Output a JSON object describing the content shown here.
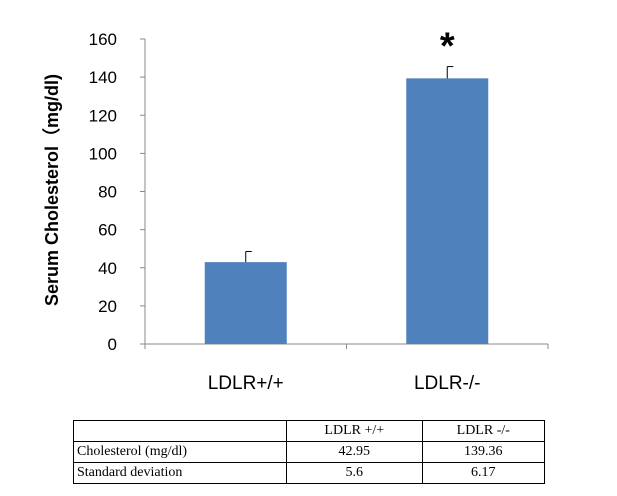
{
  "chart_data": {
    "type": "bar",
    "categories": [
      "LDLR+/+",
      "LDLR-/-"
    ],
    "values": [
      42.95,
      139.36
    ],
    "error": [
      5.6,
      6.17
    ],
    "ylabel": "Serum Cholesterol（mg/dl)",
    "ylim": [
      0,
      160
    ],
    "yticks": [
      0,
      20,
      40,
      60,
      80,
      100,
      120,
      140,
      160
    ],
    "annotations": [
      {
        "category": "LDLR-/-",
        "text": "*"
      }
    ],
    "bar_color": "#4f81bd",
    "grid": false
  },
  "table": {
    "headers": [
      "",
      "LDLR +/+",
      "LDLR -/-"
    ],
    "rows": [
      {
        "label": "Cholesterol (mg/dl)",
        "cells": [
          "42.95",
          "139.36"
        ]
      },
      {
        "label": "Standard deviation",
        "cells": [
          "5.6",
          "6.17"
        ]
      }
    ]
  }
}
